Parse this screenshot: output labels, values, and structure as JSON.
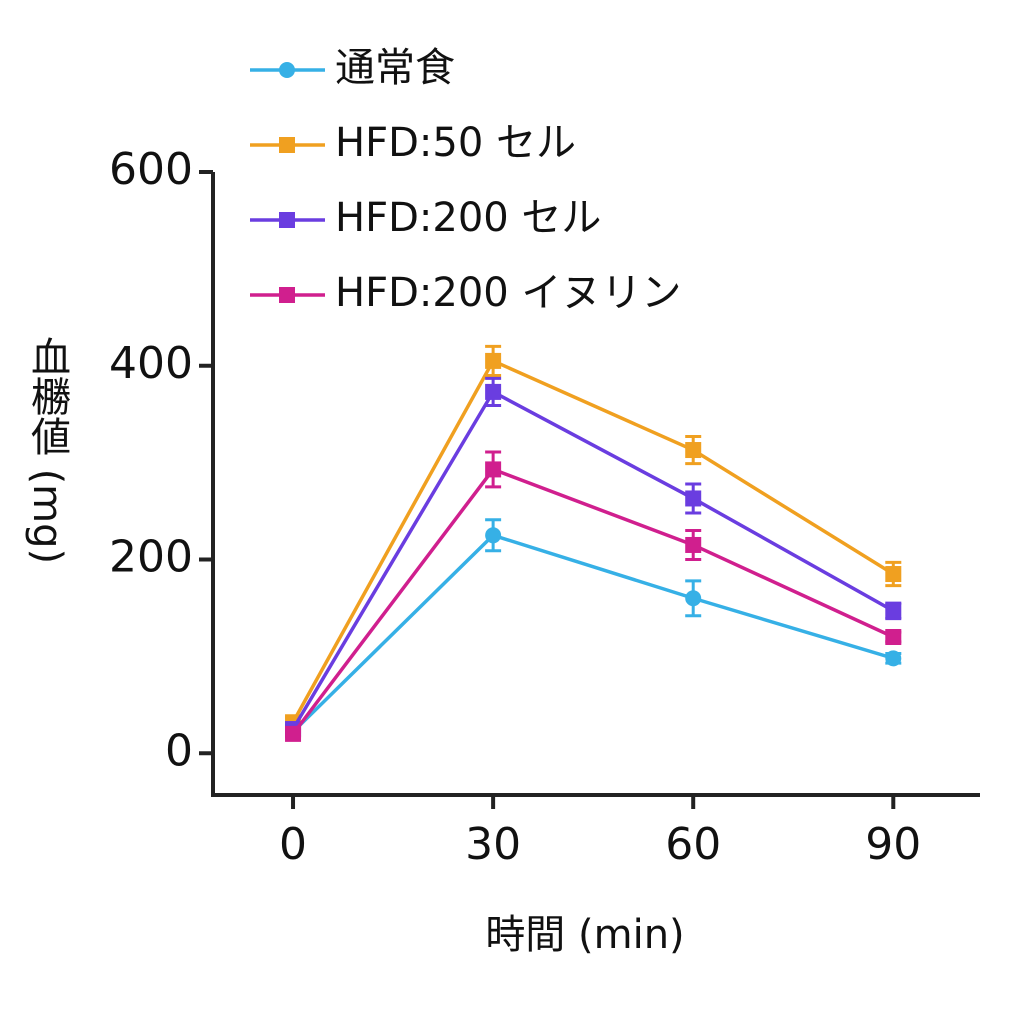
{
  "chart_data": {
    "type": "line",
    "x_label": "時間 (min)",
    "y_label": "血橳値 (mg)",
    "x": [
      0,
      30,
      60,
      90
    ],
    "xlim": [
      -12,
      103
    ],
    "xticks": [
      0,
      30,
      60,
      90
    ],
    "ylim": [
      -40,
      600
    ],
    "yticks": [
      0,
      200,
      400,
      600
    ],
    "legend": "top-left",
    "series": [
      {
        "name": "通常食",
        "color": "#36b0e6",
        "values": [
          22,
          225,
          160,
          98
        ],
        "errors": [
          3,
          16,
          18,
          5
        ]
      },
      {
        "name": "HFD:50 セル",
        "color": "#f0a020",
        "values": [
          32,
          405,
          313,
          185
        ],
        "errors": [
          5,
          15,
          14,
          12
        ]
      },
      {
        "name": "HFD:200 セル",
        "color": "#6a3de0",
        "values": [
          25,
          373,
          263,
          147
        ],
        "errors": [
          4,
          14,
          15,
          8
        ]
      },
      {
        "name": "HFD:200 イヌリン",
        "color": "#d01f8e",
        "values": [
          20,
          293,
          215,
          120
        ],
        "errors": [
          3,
          18,
          15,
          5
        ]
      }
    ]
  }
}
